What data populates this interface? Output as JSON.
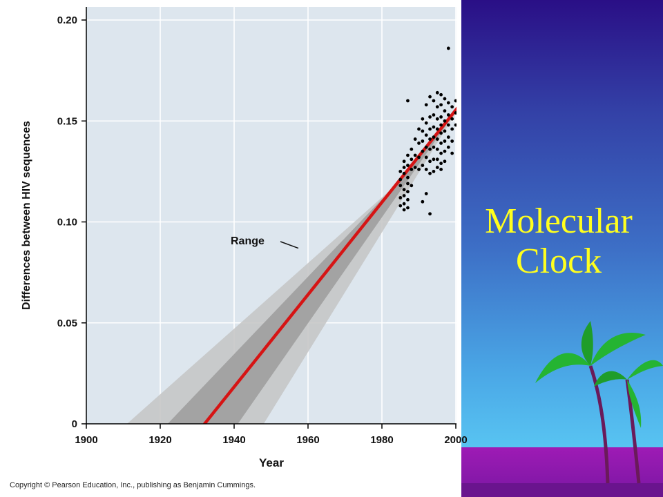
{
  "slide": {
    "title_line1": "Molecular",
    "title_line2": "Clock",
    "credit": "Copyright © Pearson Education, Inc., publishing as Benjamin Cummings."
  },
  "colors": {
    "trend_line": "#d61414",
    "plot_bg": "#dde6ee",
    "title_text": "#ffff1e"
  },
  "chart_data": {
    "type": "scatter",
    "xlabel": "Year",
    "ylabel": "Differences between HIV sequences",
    "xlim": [
      1900,
      2002
    ],
    "ylim": [
      0,
      0.205
    ],
    "xticks": [
      1900,
      1920,
      1940,
      1960,
      1980,
      2000
    ],
    "xtick_labels": [
      "1900",
      "1920",
      "1940",
      "1960",
      "1980",
      "2000"
    ],
    "yticks": [
      0,
      0.05,
      0.1,
      0.15,
      0.2
    ],
    "ytick_labels": [
      "0",
      "0.05",
      "0.10",
      "0.15",
      "0.20"
    ],
    "grid": true,
    "annotation": {
      "text": "Range",
      "target": [
        1999,
        0.087
      ]
    },
    "trend_line": {
      "x": [
        1932,
        2002
      ],
      "y": [
        0,
        0.16
      ]
    },
    "range_band": {
      "x_at_zero_outer": [
        1911,
        1948
      ],
      "x_at_zero_inner": [
        1922,
        1941
      ],
      "converge": [
        1983,
        0.117
      ]
    },
    "points": {
      "x": [
        1985,
        1985,
        1985,
        1985,
        1985,
        1986,
        1986,
        1986,
        1986,
        1986,
        1986,
        1986,
        1987,
        1987,
        1987,
        1987,
        1987,
        1987,
        1987,
        1988,
        1988,
        1988,
        1988,
        1989,
        1989,
        1989,
        1990,
        1990,
        1990,
        1990,
        1991,
        1991,
        1991,
        1991,
        1991,
        1992,
        1992,
        1992,
        1992,
        1992,
        1992,
        1992,
        1993,
        1993,
        1993,
        1993,
        1993,
        1993,
        1993,
        1994,
        1994,
        1994,
        1994,
        1994,
        1994,
        1994,
        1995,
        1995,
        1995,
        1995,
        1995,
        1995,
        1995,
        1995,
        1996,
        1996,
        1996,
        1996,
        1996,
        1996,
        1996,
        1996,
        1996,
        1997,
        1997,
        1997,
        1997,
        1997,
        1997,
        1997,
        1998,
        1998,
        1998,
        1998,
        1998,
        1999,
        1999,
        1999,
        1999,
        1999,
        2000,
        2000,
        2000,
        2001,
        1991,
        1993,
        1998,
        1987
      ],
      "y": [
        0.125,
        0.118,
        0.112,
        0.108,
        0.121,
        0.13,
        0.124,
        0.116,
        0.109,
        0.127,
        0.113,
        0.106,
        0.133,
        0.128,
        0.122,
        0.119,
        0.115,
        0.111,
        0.107,
        0.136,
        0.131,
        0.126,
        0.118,
        0.141,
        0.133,
        0.127,
        0.146,
        0.139,
        0.132,
        0.126,
        0.151,
        0.145,
        0.14,
        0.135,
        0.128,
        0.158,
        0.149,
        0.143,
        0.137,
        0.132,
        0.126,
        0.114,
        0.162,
        0.152,
        0.146,
        0.141,
        0.136,
        0.13,
        0.124,
        0.16,
        0.153,
        0.147,
        0.142,
        0.137,
        0.131,
        0.125,
        0.164,
        0.157,
        0.151,
        0.146,
        0.141,
        0.136,
        0.131,
        0.127,
        0.163,
        0.158,
        0.152,
        0.148,
        0.144,
        0.139,
        0.134,
        0.129,
        0.126,
        0.161,
        0.155,
        0.15,
        0.145,
        0.14,
        0.135,
        0.13,
        0.159,
        0.153,
        0.148,
        0.142,
        0.137,
        0.157,
        0.151,
        0.146,
        0.14,
        0.134,
        0.16,
        0.154,
        0.148,
        0.164,
        0.11,
        0.104,
        0.186,
        0.16
      ]
    }
  }
}
